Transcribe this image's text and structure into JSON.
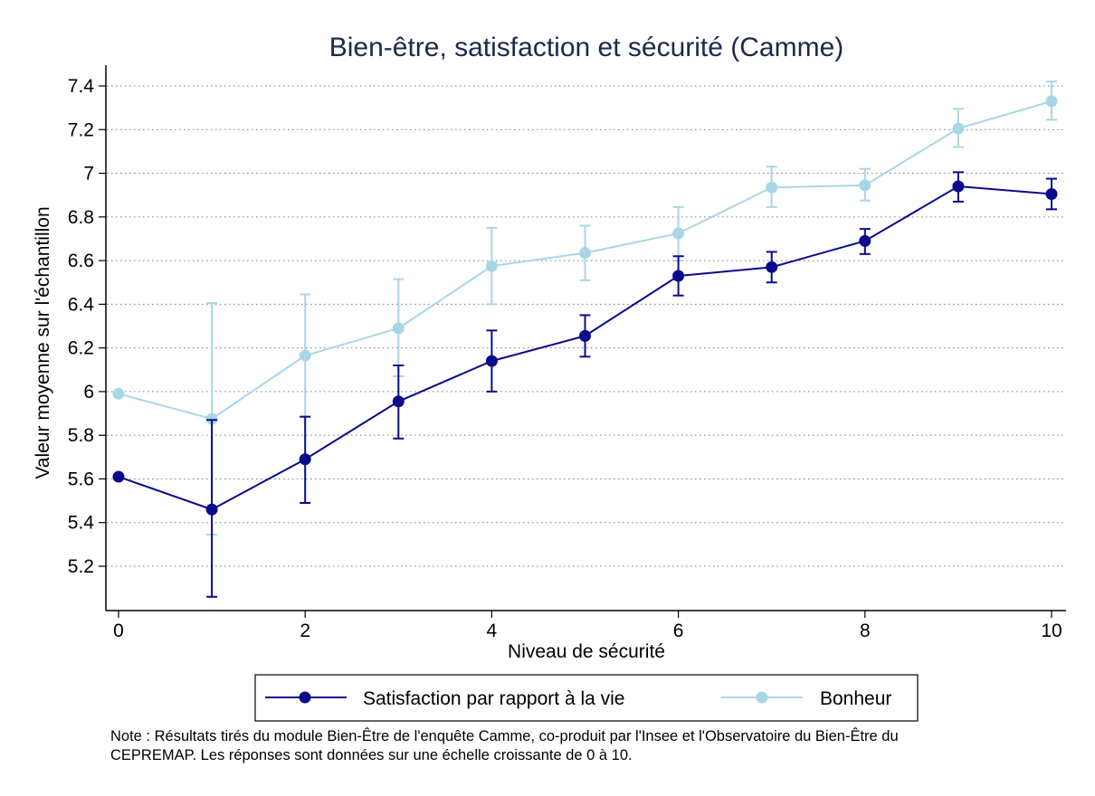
{
  "chart_data": {
    "type": "line",
    "title": "Bien-être, satisfaction et sécurité (Camme)",
    "xlabel": "Niveau de sécurité",
    "ylabel": "Valeur moyenne sur l'échantillon",
    "xlim": [
      0,
      10
    ],
    "ylim": [
      5.05,
      7.48
    ],
    "x_ticks": [
      "0",
      "2",
      "4",
      "6",
      "8",
      "10"
    ],
    "y_ticks": [
      "5.2",
      "5.4",
      "5.6",
      "5.8",
      "6",
      "6.2",
      "6.4",
      "6.6",
      "6.8",
      "7",
      "7.2",
      "7.4"
    ],
    "grid": "horizontal dotted",
    "legend_position": "bottom",
    "x": [
      0,
      1,
      2,
      3,
      4,
      5,
      6,
      7,
      8,
      9,
      10
    ],
    "series": [
      {
        "name": "Satisfaction par rapport à la vie",
        "color": "#0a0a8c",
        "values": [
          5.61,
          5.46,
          5.69,
          5.955,
          6.14,
          6.255,
          6.53,
          6.57,
          6.69,
          6.94,
          6.905
        ],
        "ci_low": [
          null,
          5.06,
          5.49,
          5.785,
          6.0,
          6.16,
          6.44,
          6.5,
          6.63,
          6.87,
          6.835
        ],
        "ci_high": [
          null,
          5.87,
          5.885,
          6.12,
          6.28,
          6.35,
          6.62,
          6.64,
          6.745,
          7.005,
          6.975
        ]
      },
      {
        "name": "Bonheur",
        "color": "#a9d6e5",
        "values": [
          5.99,
          5.875,
          6.165,
          6.29,
          6.575,
          6.635,
          6.725,
          6.935,
          6.945,
          7.205,
          7.33
        ],
        "ci_low": [
          null,
          5.345,
          5.885,
          6.07,
          6.4,
          6.51,
          6.6,
          6.845,
          6.875,
          7.12,
          7.245
        ],
        "ci_high": [
          null,
          6.405,
          6.445,
          6.515,
          6.75,
          6.76,
          6.845,
          7.03,
          7.02,
          7.295,
          7.42
        ]
      }
    ]
  },
  "note": {
    "line1": "Note : Résultats tirés du module Bien-Être de l'enquête Camme, co-produit par l'Insee et l'Observatoire du Bien-Être du",
    "line2": "CEPREMAP. Les réponses sont données sur une échelle croissante de 0 à 10."
  }
}
